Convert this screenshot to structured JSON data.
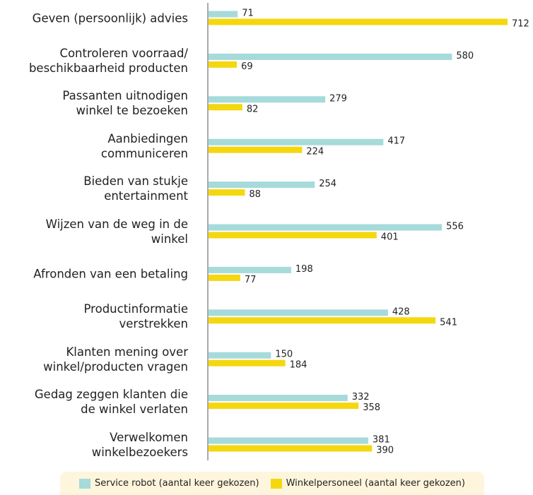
{
  "chart_data": {
    "type": "bar",
    "orientation": "horizontal",
    "categories": [
      "Geven (persoonlijk) advies",
      "Controleren voorraad/\nbeschikbaarheid producten",
      "Passanten uitnodigen\nwinkel te bezoeken",
      "Aanbiedingen\ncommuniceren",
      "Bieden van stukje\nentertainment",
      "Wijzen van de weg in de\nwinkel",
      "Afronden van een betaling",
      "Productinformatie\nverstrekken",
      "Klanten mening over\nwinkel/producten vragen",
      "Gedag zeggen klanten die\nde winkel verlaten",
      "Verwelkomen\nwinkelbezoekers"
    ],
    "series": [
      {
        "name": "Service robot (aantal keer gekozen)",
        "color": "#a6dadb",
        "values": [
          71,
          580,
          279,
          417,
          254,
          556,
          198,
          428,
          150,
          332,
          381
        ]
      },
      {
        "name": "Winkelpersoneel (aantal keer gekozen)",
        "color": "#f5d70f",
        "values": [
          712,
          69,
          82,
          224,
          88,
          401,
          77,
          541,
          184,
          358,
          390
        ]
      }
    ],
    "legend": "bottom"
  }
}
